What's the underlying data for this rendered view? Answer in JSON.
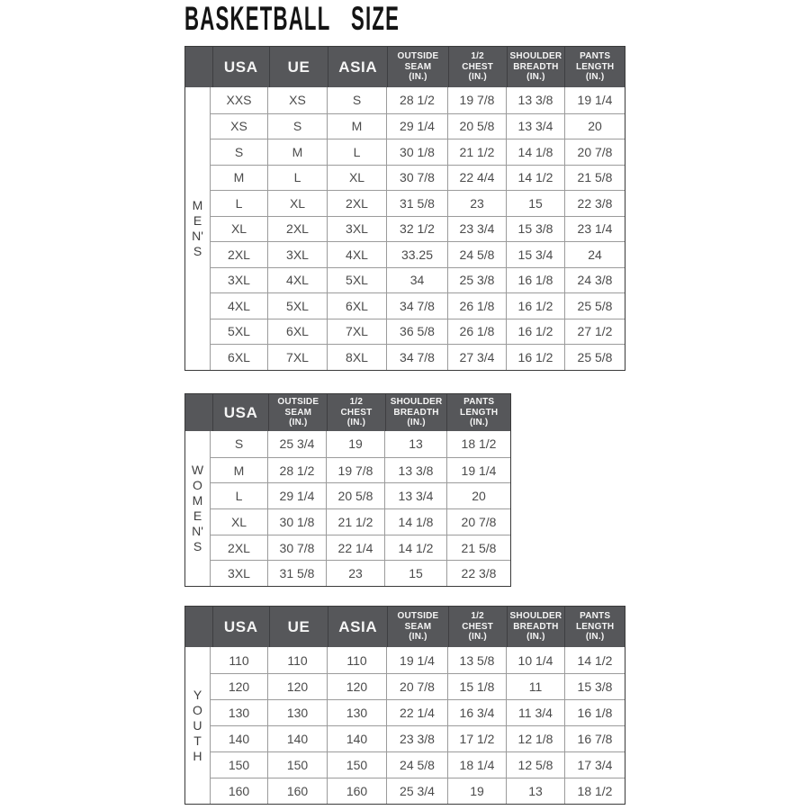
{
  "title": "BASKETBALL SIZE",
  "colors": {
    "header_bg": "#56575a",
    "header_text": "#f5f5f5",
    "grid_line": "#9b9b9b",
    "outer_border": "#3a3a3a",
    "body_text": "#4b4b4b",
    "title_text": "#141414"
  },
  "tables": {
    "mens": {
      "group_label": "M\nE\nN'\nS",
      "headers": {
        "usa": "USA",
        "ue": "UE",
        "asia": "ASIA",
        "outside_seam": "OUTSIDE\nSEAM\n(IN.)",
        "half_chest": "1/2\nCHEST\n(IN.)",
        "shoulder_breadth": "SHOULDER\nBREADTH\n(IN.)",
        "pants_length": "PANTS\nLENGTH\n(IN.)"
      },
      "rows": [
        [
          "XXS",
          "XS",
          "S",
          "28 1/2",
          "19 7/8",
          "13 3/8",
          "19 1/4"
        ],
        [
          "XS",
          "S",
          "M",
          "29 1/4",
          "20 5/8",
          "13 3/4",
          "20"
        ],
        [
          "S",
          "M",
          "L",
          "30 1/8",
          "21 1/2",
          "14 1/8",
          "20 7/8"
        ],
        [
          "M",
          "L",
          "XL",
          "30 7/8",
          "22 4/4",
          "14 1/2",
          "21 5/8"
        ],
        [
          "L",
          "XL",
          "2XL",
          "31 5/8",
          "23",
          "15",
          "22 3/8"
        ],
        [
          "XL",
          "2XL",
          "3XL",
          "32 1/2",
          "23 3/4",
          "15 3/8",
          "23 1/4"
        ],
        [
          "2XL",
          "3XL",
          "4XL",
          "33.25",
          "24 5/8",
          "15 3/4",
          "24"
        ],
        [
          "3XL",
          "4XL",
          "5XL",
          "34",
          "25 3/8",
          "16 1/8",
          "24 3/8"
        ],
        [
          "4XL",
          "5XL",
          "6XL",
          "34 7/8",
          "26 1/8",
          "16 1/2",
          "25 5/8"
        ],
        [
          "5XL",
          "6XL",
          "7XL",
          "36 5/8",
          "26 1/8",
          "16 1/2",
          "27 1/2"
        ],
        [
          "6XL",
          "7XL",
          "8XL",
          "34 7/8",
          "27 3/4",
          "16 1/2",
          "25 5/8"
        ]
      ]
    },
    "womens": {
      "group_label": "W\nO\nM\nE\nN'\nS",
      "headers": {
        "usa": "USA",
        "outside_seam": "OUTSIDE\nSEAM\n(IN.)",
        "half_chest": "1/2\nCHEST\n(IN.)",
        "shoulder_breadth": "SHOULDER\nBREADTH\n(IN.)",
        "pants_length": "PANTS\nLENGTH\n(IN.)"
      },
      "rows": [
        [
          "S",
          "25 3/4",
          "19",
          "13",
          "18 1/2"
        ],
        [
          "M",
          "28 1/2",
          "19 7/8",
          "13 3/8",
          "19 1/4"
        ],
        [
          "L",
          "29 1/4",
          "20 5/8",
          "13 3/4",
          "20"
        ],
        [
          "XL",
          "30 1/8",
          "21 1/2",
          "14 1/8",
          "20 7/8"
        ],
        [
          "2XL",
          "30 7/8",
          "22 1/4",
          "14 1/2",
          "21 5/8"
        ],
        [
          "3XL",
          "31 5/8",
          "23",
          "15",
          "22 3/8"
        ]
      ]
    },
    "youth": {
      "group_label": "Y\nO\nU\nT\nH",
      "headers": {
        "usa": "USA",
        "ue": "UE",
        "asia": "ASIA",
        "outside_seam": "OUTSIDE\nSEAM\n(IN.)",
        "half_chest": "1/2\nCHEST\n(IN.)",
        "shoulder_breadth": "SHOULDER\nBREADTH\n(IN.)",
        "pants_length": "PANTS\nLENGTH\n(IN.)"
      },
      "rows": [
        [
          "110",
          "110",
          "110",
          "19 1/4",
          "13 5/8",
          "10 1/4",
          "14 1/2"
        ],
        [
          "120",
          "120",
          "120",
          "20 7/8",
          "15 1/8",
          "11",
          "15 3/8"
        ],
        [
          "130",
          "130",
          "130",
          "22 1/4",
          "16 3/4",
          "11 3/4",
          "16 1/8"
        ],
        [
          "140",
          "140",
          "140",
          "23 3/8",
          "17 1/2",
          "12 1/8",
          "16 7/8"
        ],
        [
          "150",
          "150",
          "150",
          "24 5/8",
          "18 1/4",
          "12 5/8",
          "17 3/4"
        ],
        [
          "160",
          "160",
          "160",
          "25 3/4",
          "19",
          "13",
          "18 1/2"
        ]
      ]
    }
  }
}
